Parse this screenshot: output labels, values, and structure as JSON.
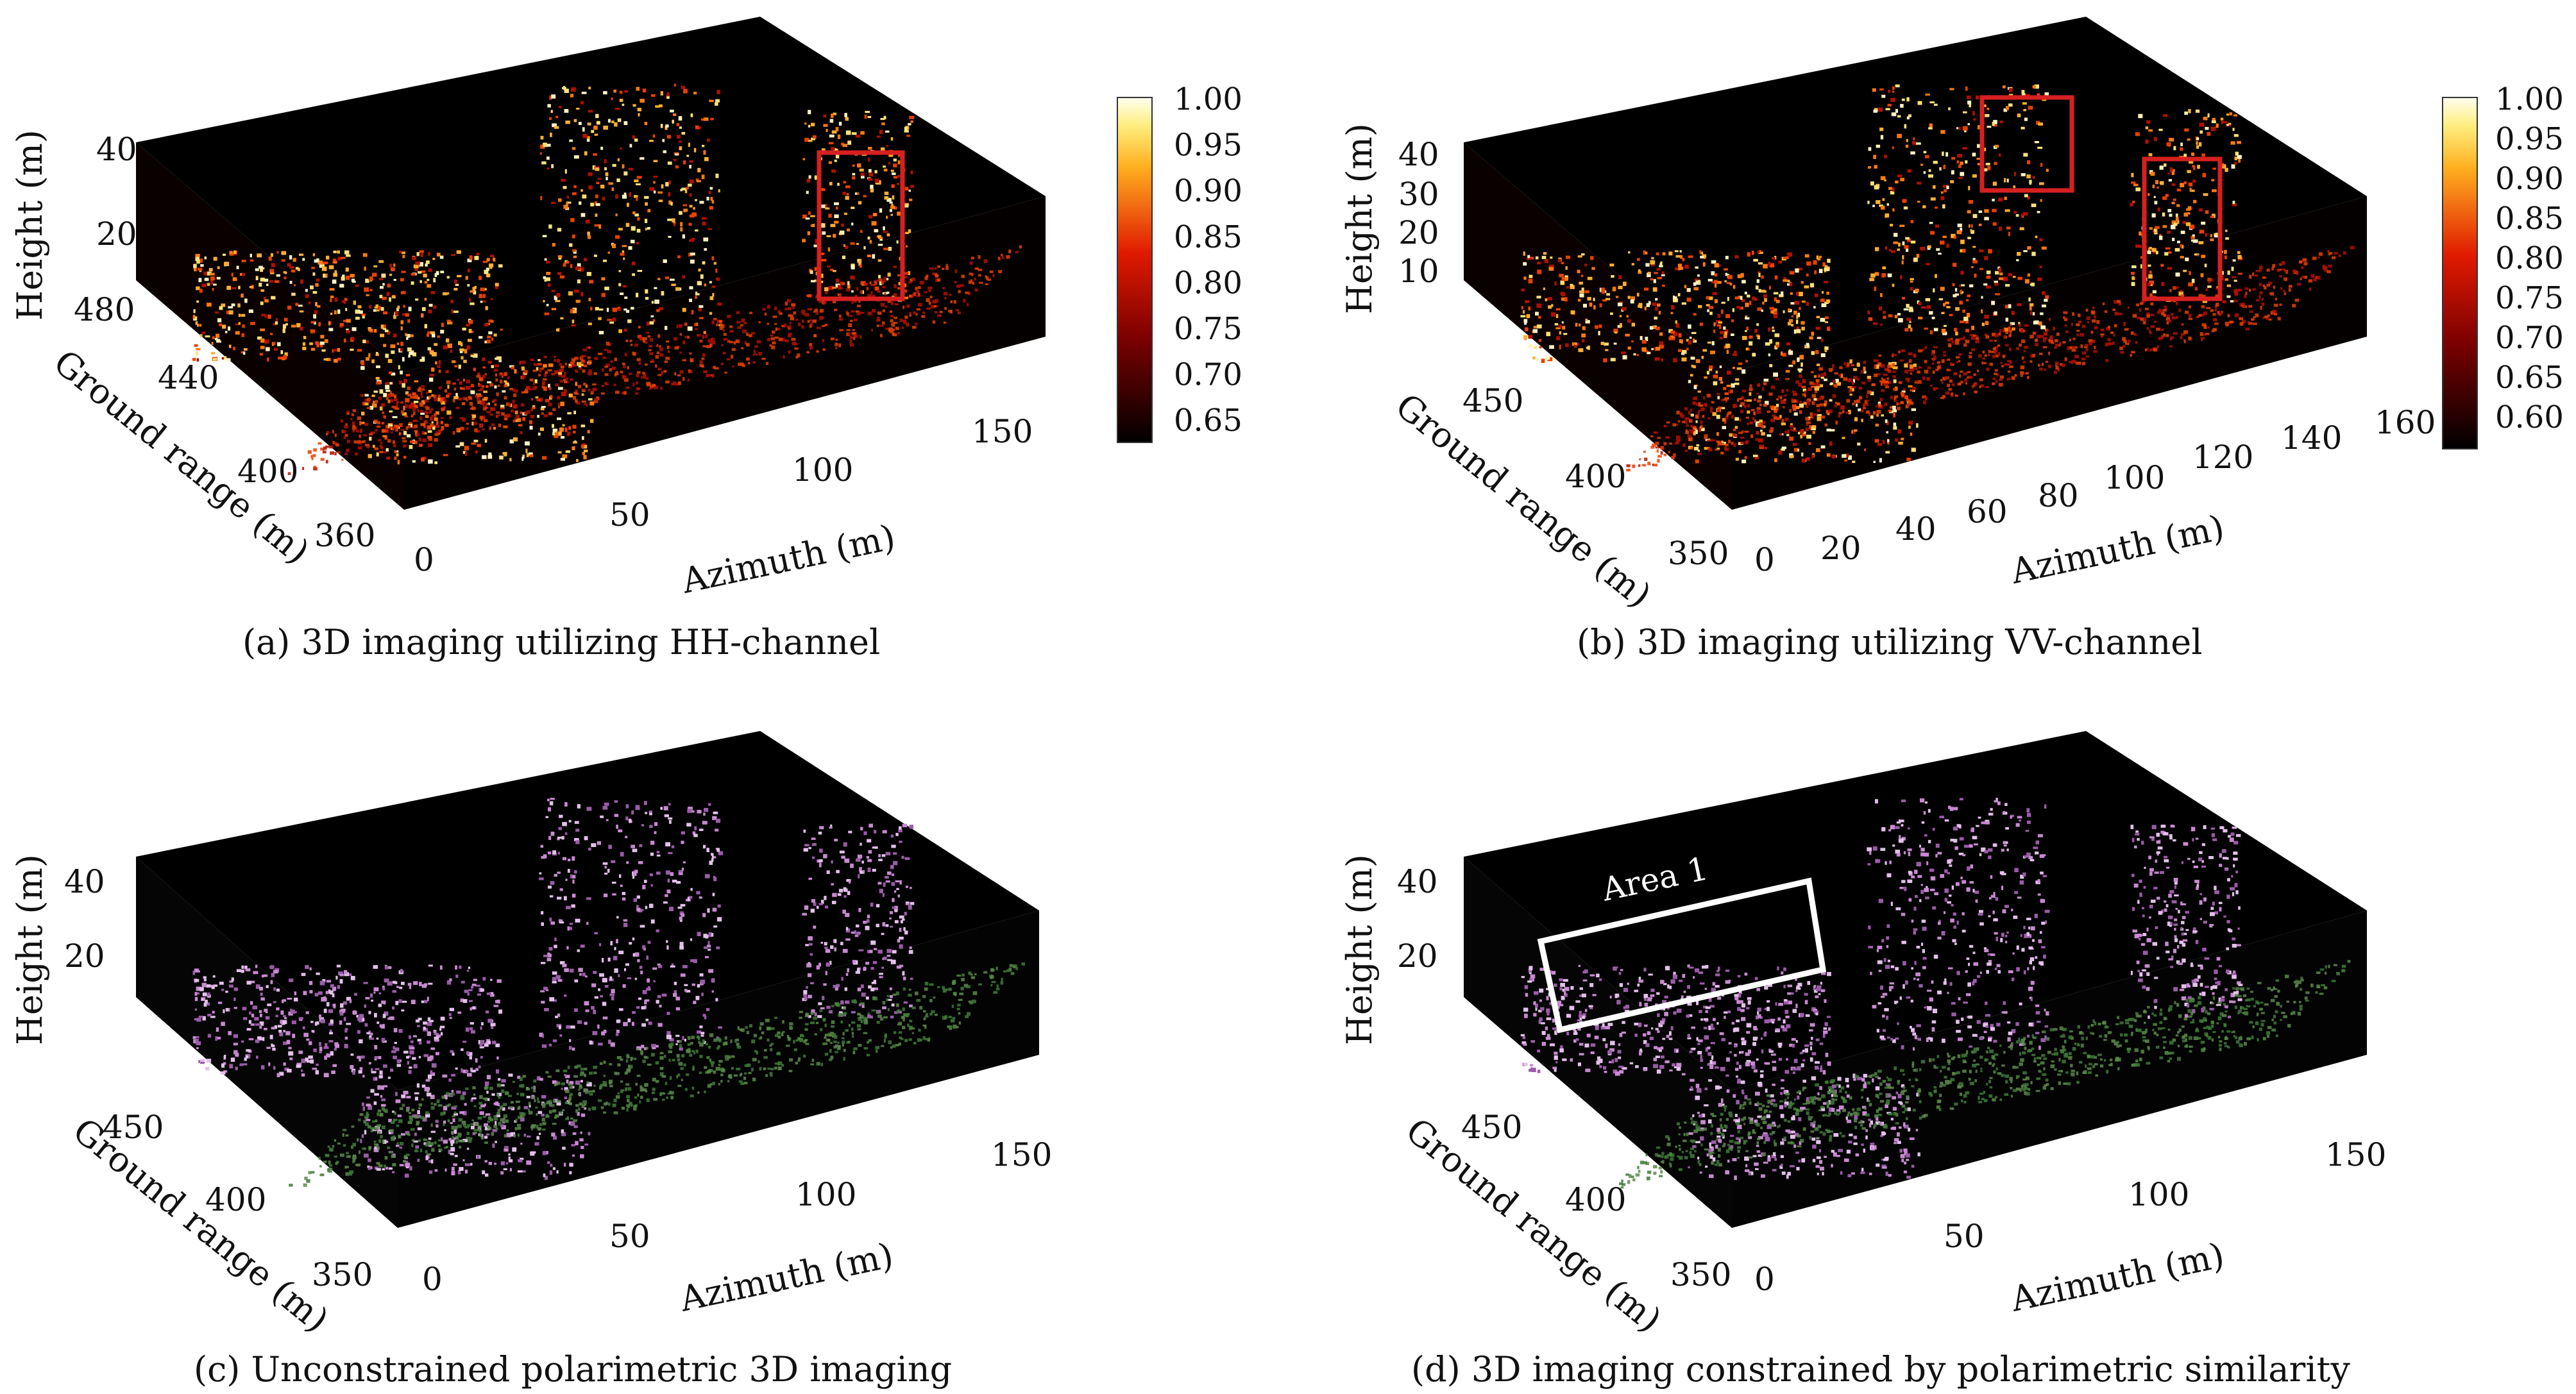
{
  "panels": [
    {
      "id": "a",
      "caption": "(a) 3D imaging utilizing HH-channel",
      "xlabel": "Azimuth (m)",
      "ylabel": "Ground range (m)",
      "zlabel": "Height (m)",
      "x_ticks": [
        "0",
        "50",
        "100",
        "150"
      ],
      "y_ticks": [
        "360",
        "400",
        "440",
        "480"
      ],
      "z_ticks": [
        "20",
        "40"
      ],
      "colormap": "hot",
      "colorbar_ticks": [
        "1.00",
        "0.95",
        "0.90",
        "0.85",
        "0.80",
        "0.75",
        "0.70",
        "0.65"
      ],
      "highlight_boxes": [
        {
          "color": "#d62020",
          "label": ""
        }
      ]
    },
    {
      "id": "b",
      "caption": "(b) 3D imaging utilizing VV-channel",
      "xlabel": "Azimuth (m)",
      "ylabel": "Ground range (m)",
      "zlabel": "Height (m)",
      "x_ticks": [
        "0",
        "20",
        "40",
        "60",
        "80",
        "100",
        "120",
        "140",
        "160"
      ],
      "y_ticks": [
        "350",
        "400",
        "450"
      ],
      "z_ticks": [
        "10",
        "20",
        "30",
        "40"
      ],
      "colormap": "hot",
      "colorbar_ticks": [
        "1.00",
        "0.95",
        "0.90",
        "0.85",
        "0.80",
        "0.75",
        "0.70",
        "0.65",
        "0.60"
      ],
      "highlight_boxes": [
        {
          "color": "#d62020",
          "label": ""
        },
        {
          "color": "#d62020",
          "label": ""
        }
      ]
    },
    {
      "id": "c",
      "caption": "(c) Unconstrained polarimetric 3D imaging",
      "xlabel": "Azimuth (m)",
      "ylabel": "Ground range (m)",
      "zlabel": "Height (m)",
      "x_ticks": [
        "0",
        "50",
        "100",
        "150"
      ],
      "y_ticks": [
        "350",
        "400",
        "450"
      ],
      "z_ticks": [
        "20",
        "40"
      ],
      "colormap": "pauli-rgb",
      "colorbar_ticks": [],
      "highlight_boxes": []
    },
    {
      "id": "d",
      "caption": "(d) 3D imaging constrained by polarimetric similarity",
      "xlabel": "Azimuth (m)",
      "ylabel": "Ground range (m)",
      "zlabel": "Height (m)",
      "x_ticks": [
        "0",
        "50",
        "100",
        "150"
      ],
      "y_ticks": [
        "350",
        "400",
        "450"
      ],
      "z_ticks": [
        "20",
        "40"
      ],
      "colormap": "pauli-rgb",
      "colorbar_ticks": [],
      "highlight_boxes": [
        {
          "color": "#ffffff",
          "label": "Area 1"
        }
      ]
    }
  ],
  "colors": {
    "hot_low": "#000000",
    "hot_mid": "#cc1a00",
    "hot_high": "#ffe45c",
    "hot_top": "#fffbe8",
    "pauli_ground": "#3f7a3a",
    "pauli_building": "#c88ad0",
    "box_red": "#d62020",
    "box_white": "#ffffff"
  }
}
